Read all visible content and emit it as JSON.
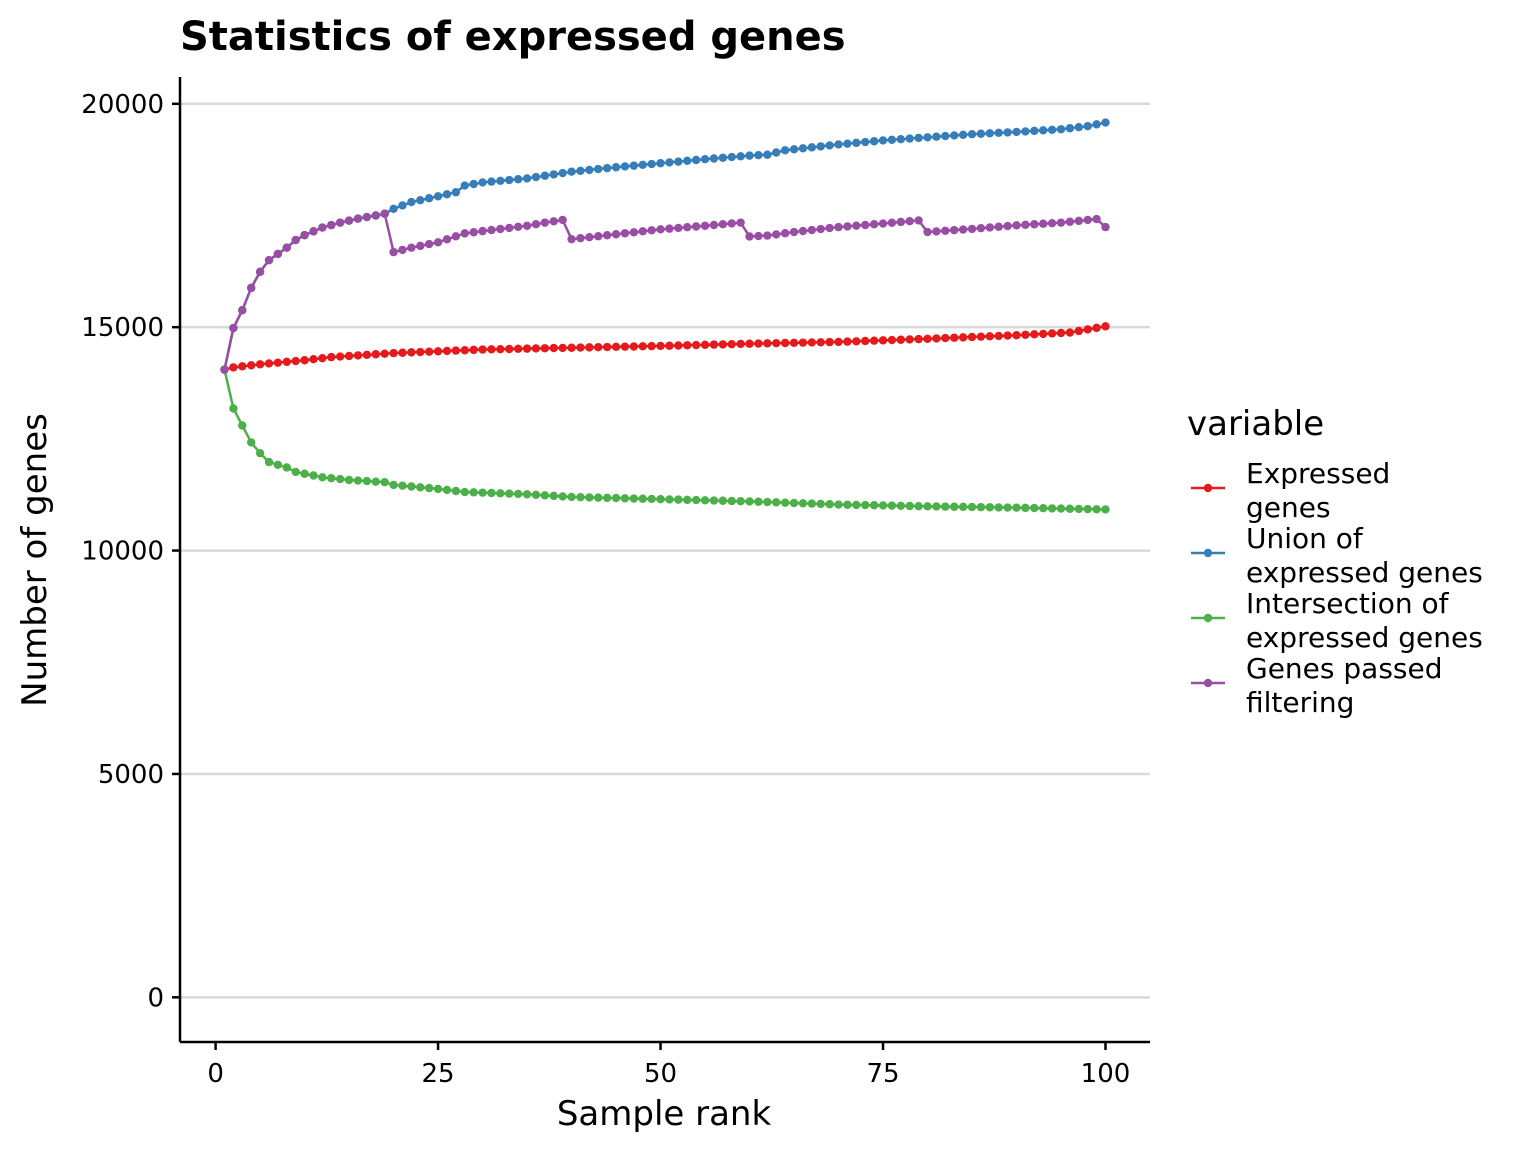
{
  "chart_data": {
    "type": "line",
    "title": "Statistics of expressed genes",
    "xlabel": "Sample rank",
    "ylabel": "Number of genes",
    "xlim": [
      -4,
      105
    ],
    "ylim": [
      -1000,
      20600
    ],
    "x_ticks": [
      0,
      25,
      50,
      75,
      100
    ],
    "y_ticks": [
      0,
      5000,
      10000,
      15000,
      20000
    ],
    "grid": "horizontal major",
    "legend": {
      "title": "variable",
      "position": "right",
      "entries": [
        {
          "label_lines": [
            "Expressed",
            "genes"
          ],
          "color": "#e41a1c"
        },
        {
          "label_lines": [
            "Union of",
            "expressed genes"
          ],
          "color": "#377eb8"
        },
        {
          "label_lines": [
            "Intersection of",
            "expressed genes"
          ],
          "color": "#4daf4a"
        },
        {
          "label_lines": [
            "Genes passed",
            "filtering"
          ],
          "color": "#984ea3"
        }
      ]
    },
    "x": [
      1,
      100
    ],
    "series": [
      {
        "name": "Expressed genes",
        "color": "#e41a1c",
        "knots": [
          [
            1,
            14050
          ],
          [
            2,
            14100
          ],
          [
            5,
            14170
          ],
          [
            10,
            14260
          ],
          [
            13,
            14330
          ],
          [
            20,
            14420
          ],
          [
            30,
            14500
          ],
          [
            40,
            14540
          ],
          [
            50,
            14580
          ],
          [
            60,
            14630
          ],
          [
            70,
            14670
          ],
          [
            80,
            14740
          ],
          [
            90,
            14820
          ],
          [
            96,
            14880
          ],
          [
            100,
            15020
          ]
        ]
      },
      {
        "name": "Union of expressed genes",
        "color": "#377eb8",
        "knots": [
          [
            1,
            14050
          ],
          [
            2,
            14980
          ],
          [
            3,
            15380
          ],
          [
            4,
            15880
          ],
          [
            5,
            16240
          ],
          [
            6,
            16500
          ],
          [
            7,
            16640
          ],
          [
            8,
            16780
          ],
          [
            9,
            16950
          ],
          [
            10,
            17060
          ],
          [
            12,
            17230
          ],
          [
            14,
            17340
          ],
          [
            16,
            17430
          ],
          [
            18,
            17500
          ],
          [
            19,
            17540
          ],
          [
            20,
            17650
          ],
          [
            22,
            17800
          ],
          [
            25,
            17930
          ],
          [
            27,
            18020
          ],
          [
            28,
            18170
          ],
          [
            30,
            18240
          ],
          [
            35,
            18330
          ],
          [
            38,
            18420
          ],
          [
            40,
            18480
          ],
          [
            45,
            18580
          ],
          [
            50,
            18670
          ],
          [
            55,
            18760
          ],
          [
            60,
            18840
          ],
          [
            62,
            18860
          ],
          [
            64,
            18960
          ],
          [
            70,
            19090
          ],
          [
            75,
            19180
          ],
          [
            80,
            19250
          ],
          [
            85,
            19320
          ],
          [
            90,
            19370
          ],
          [
            95,
            19430
          ],
          [
            98,
            19500
          ],
          [
            100,
            19580
          ]
        ]
      },
      {
        "name": "Intersection of expressed genes",
        "color": "#4daf4a",
        "knots": [
          [
            1,
            14050
          ],
          [
            2,
            13180
          ],
          [
            3,
            12800
          ],
          [
            4,
            12420
          ],
          [
            5,
            12180
          ],
          [
            6,
            11980
          ],
          [
            8,
            11860
          ],
          [
            9,
            11760
          ],
          [
            10,
            11720
          ],
          [
            12,
            11640
          ],
          [
            15,
            11580
          ],
          [
            19,
            11530
          ],
          [
            20,
            11470
          ],
          [
            25,
            11380
          ],
          [
            28,
            11310
          ],
          [
            35,
            11260
          ],
          [
            40,
            11200
          ],
          [
            50,
            11150
          ],
          [
            60,
            11100
          ],
          [
            70,
            11030
          ],
          [
            80,
            10990
          ],
          [
            90,
            10960
          ],
          [
            100,
            10920
          ]
        ]
      },
      {
        "name": "Genes passed filtering",
        "color": "#984ea3",
        "knots": [
          [
            1,
            14050
          ],
          [
            2,
            14980
          ],
          [
            3,
            15380
          ],
          [
            4,
            15880
          ],
          [
            5,
            16240
          ],
          [
            6,
            16500
          ],
          [
            7,
            16640
          ],
          [
            8,
            16780
          ],
          [
            9,
            16950
          ],
          [
            10,
            17060
          ],
          [
            12,
            17230
          ],
          [
            14,
            17340
          ],
          [
            16,
            17430
          ],
          [
            18,
            17500
          ],
          [
            19,
            17540
          ],
          [
            20,
            16680
          ],
          [
            22,
            16780
          ],
          [
            25,
            16900
          ],
          [
            28,
            17100
          ],
          [
            30,
            17150
          ],
          [
            35,
            17270
          ],
          [
            37,
            17340
          ],
          [
            39,
            17400
          ],
          [
            40,
            16970
          ],
          [
            45,
            17080
          ],
          [
            50,
            17190
          ],
          [
            55,
            17270
          ],
          [
            59,
            17340
          ],
          [
            60,
            17030
          ],
          [
            62,
            17050
          ],
          [
            65,
            17130
          ],
          [
            70,
            17240
          ],
          [
            75,
            17320
          ],
          [
            79,
            17390
          ],
          [
            80,
            17130
          ],
          [
            85,
            17200
          ],
          [
            90,
            17280
          ],
          [
            95,
            17340
          ],
          [
            99,
            17420
          ],
          [
            100,
            17240
          ]
        ]
      }
    ]
  }
}
